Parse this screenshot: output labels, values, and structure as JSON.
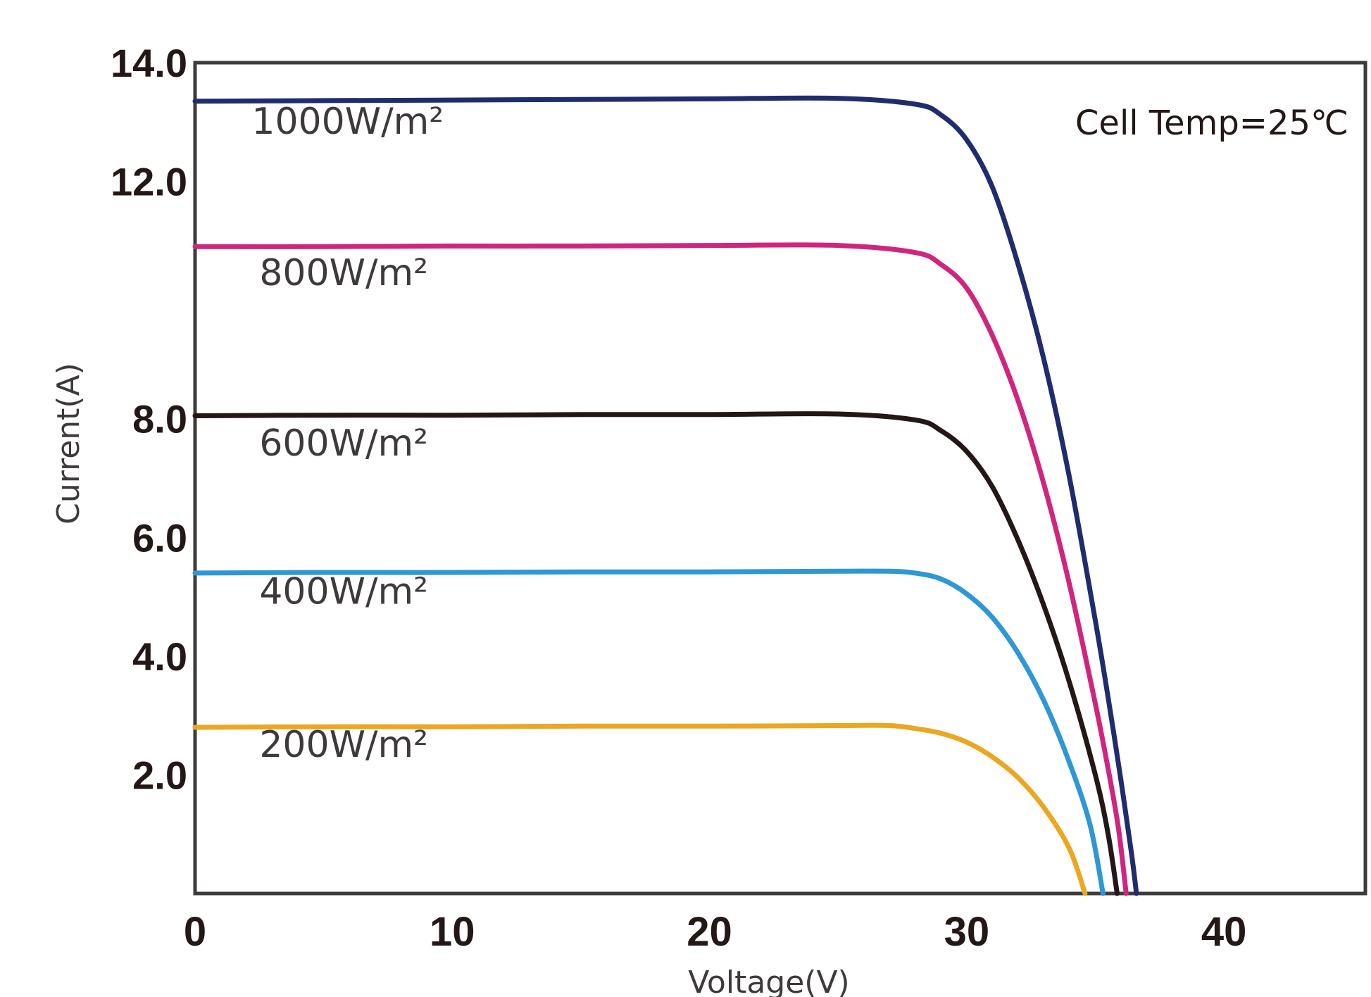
{
  "chart_data": {
    "type": "line",
    "xlabel": "Voltage(V)",
    "ylabel": "Current(A)",
    "annotation": "Cell Temp=25℃",
    "xlim": [
      0,
      45.5
    ],
    "ylim": [
      0,
      14
    ],
    "x_ticks": [
      0,
      10,
      20,
      30,
      40
    ],
    "x_tick_labels": [
      "0",
      "10",
      "20",
      "30",
      "40"
    ],
    "y_ticks": [
      2,
      4,
      6,
      8,
      12,
      14
    ],
    "y_tick_labels": [
      "2.0",
      "4.0",
      "6.0",
      "8.0",
      "12.0",
      "14.0"
    ],
    "grid": false,
    "series": [
      {
        "name": "1000W/m²",
        "color": "#1f2d6e",
        "label_anchor": [
          2.2,
          12.8
        ],
        "x": [
          0,
          5,
          10,
          15,
          20,
          25,
          28,
          29,
          30,
          31,
          32,
          33,
          34,
          35,
          35.5,
          36,
          36.4,
          36.6
        ],
        "y": [
          13.35,
          13.36,
          13.37,
          13.38,
          13.39,
          13.4,
          13.3,
          13.12,
          12.7,
          11.9,
          10.6,
          9.0,
          7.0,
          4.6,
          3.3,
          1.9,
          0.7,
          0
        ]
      },
      {
        "name": "800W/m²",
        "color": "#d0257f",
        "label_anchor": [
          2.5,
          10.25
        ],
        "x": [
          0,
          5,
          10,
          15,
          20,
          25,
          28,
          29,
          30,
          31,
          32,
          33,
          34,
          35,
          35.5,
          35.9,
          36.2
        ],
        "y": [
          10.9,
          10.9,
          10.91,
          10.91,
          10.92,
          10.92,
          10.8,
          10.6,
          10.2,
          9.4,
          8.3,
          6.9,
          5.2,
          3.2,
          2.1,
          1.1,
          0
        ]
      },
      {
        "name": "600W/m²",
        "color": "#231815",
        "label_anchor": [
          2.5,
          7.38
        ],
        "x": [
          0,
          5,
          10,
          15,
          20,
          25,
          28,
          29,
          30,
          31,
          32,
          33,
          34,
          35,
          35.5,
          35.85
        ],
        "y": [
          8.05,
          8.06,
          8.06,
          8.07,
          8.07,
          8.08,
          7.98,
          7.8,
          7.45,
          6.85,
          5.95,
          4.85,
          3.55,
          2.0,
          1.0,
          0
        ]
      },
      {
        "name": "400W/m²",
        "color": "#2e97d4",
        "label_anchor": [
          2.5,
          4.88
        ],
        "x": [
          0,
          5,
          10,
          15,
          20,
          25,
          27,
          28,
          29,
          30,
          31,
          32,
          33,
          34,
          34.8,
          35.3
        ],
        "y": [
          5.4,
          5.41,
          5.41,
          5.42,
          5.42,
          5.43,
          5.43,
          5.4,
          5.3,
          5.05,
          4.65,
          4.05,
          3.25,
          2.2,
          1.15,
          0
        ]
      },
      {
        "name": "200W/m²",
        "color": "#eba721",
        "label_anchor": [
          2.5,
          2.3
        ],
        "x": [
          0,
          5,
          10,
          15,
          20,
          25,
          27,
          28,
          29,
          30,
          31,
          32,
          33,
          34,
          34.6
        ],
        "y": [
          2.8,
          2.81,
          2.81,
          2.82,
          2.82,
          2.83,
          2.83,
          2.78,
          2.7,
          2.55,
          2.3,
          1.95,
          1.45,
          0.75,
          0
        ]
      }
    ]
  }
}
